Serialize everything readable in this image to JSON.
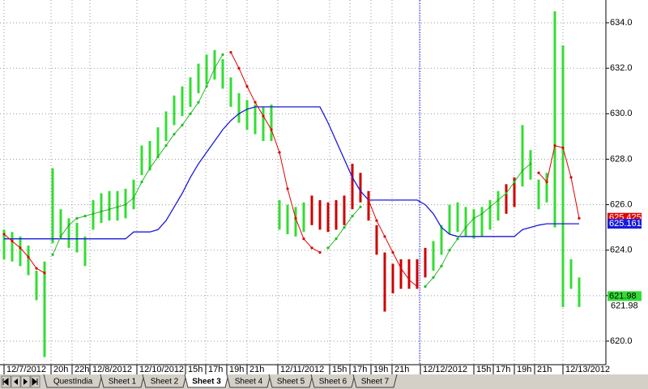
{
  "chart_data": {
    "type": "hilo",
    "x": [
      5,
      15,
      25,
      35,
      45,
      55,
      65,
      75,
      85,
      95,
      105,
      115,
      125,
      135,
      145,
      155,
      165,
      175,
      185,
      195,
      205,
      215,
      225,
      235,
      245,
      255,
      265,
      275,
      285,
      295,
      305,
      315,
      325,
      335,
      345,
      355,
      365,
      375,
      385,
      395,
      405,
      415,
      425,
      435,
      445,
      455,
      465,
      475,
      485,
      495,
      505,
      515,
      525,
      535,
      545,
      555,
      565,
      575,
      585,
      595,
      605,
      615,
      625,
      635,
      645,
      655,
      665,
      675,
      685,
      695,
      705,
      715
    ],
    "high": [
      624.9,
      624.8,
      624.6,
      624.2,
      623.1,
      623.5,
      627.6,
      625.8,
      625.4,
      625.2,
      624.6,
      626.2,
      626.5,
      626.6,
      626.6,
      626.7,
      627.1,
      628.6,
      628.8,
      629.4,
      630.1,
      630.8,
      631.2,
      631.6,
      632.2,
      632.6,
      632.8,
      632.4,
      631.6,
      630.9,
      630.6,
      630.4,
      630.3,
      630.4,
      626.2,
      626.0,
      625.9,
      626.1,
      626.4,
      626.2,
      626.1,
      626.2,
      626.4,
      627.8,
      627.4,
      626.6,
      625.1,
      623.9,
      623.4,
      623.6,
      623.6,
      623.6,
      624.1,
      624.4,
      625.1,
      626.0,
      626.1,
      625.9,
      625.8,
      625.9,
      626.2,
      626.6,
      626.9,
      627.2,
      629.5,
      628.4,
      627.1,
      627.4,
      634.5,
      633.0,
      623.6,
      622.8
    ],
    "low": [
      623.6,
      623.5,
      623.3,
      622.9,
      621.8,
      619.3,
      624.3,
      624.5,
      624.1,
      623.9,
      623.3,
      624.9,
      625.2,
      625.3,
      625.3,
      625.4,
      625.8,
      627.3,
      627.5,
      628.1,
      628.8,
      629.5,
      629.9,
      630.3,
      630.9,
      631.3,
      631.5,
      631.1,
      630.3,
      629.6,
      629.3,
      629.1,
      628.8,
      628.8,
      624.9,
      624.7,
      624.6,
      624.8,
      625.1,
      624.9,
      624.8,
      624.9,
      625.1,
      625.8,
      626.1,
      625.3,
      623.8,
      621.3,
      622.1,
      622.3,
      622.3,
      622.3,
      622.8,
      623.1,
      623.8,
      624.7,
      624.8,
      624.6,
      624.5,
      624.6,
      624.9,
      625.3,
      625.6,
      625.9,
      626.8,
      627.1,
      625.8,
      626.1,
      625.0,
      621.5,
      622.3,
      621.5
    ],
    "colors": [
      "#33dd33",
      "#33dd33",
      "#33dd33",
      "#33dd33",
      "#33dd33",
      "#33dd33",
      "#33dd33",
      "#33dd33",
      "#33dd33",
      "#33dd33",
      "#33dd33",
      "#33dd33",
      "#33dd33",
      "#33dd33",
      "#33dd33",
      "#33dd33",
      "#33dd33",
      "#33dd33",
      "#33dd33",
      "#33dd33",
      "#33dd33",
      "#33dd33",
      "#33dd33",
      "#33dd33",
      "#33dd33",
      "#33dd33",
      "#33dd33",
      "#33dd33",
      "#33dd33",
      "#33dd33",
      "#33dd33",
      "#33dd33",
      "#33dd33",
      "#33dd33",
      "#33dd33",
      "#33dd33",
      "#33dd33",
      "#33dd33",
      "#cc0000",
      "#cc0000",
      "#cc0000",
      "#cc0000",
      "#cc0000",
      "#cc0000",
      "#cc0000",
      "#cc0000",
      "#cc0000",
      "#cc0000",
      "#cc0000",
      "#cc0000",
      "#cc0000",
      "#cc0000",
      "#cc0000",
      "#33dd33",
      "#33dd33",
      "#33dd33",
      "#33dd33",
      "#33dd33",
      "#33dd33",
      "#33dd33",
      "#33dd33",
      "#33dd33",
      "#cc0000",
      "#cc0000",
      "#33dd33",
      "#33dd33",
      "#33dd33",
      "#33dd33",
      "#33dd33",
      "#33dd33",
      "#33dd33",
      "#33dd33"
    ],
    "lines": [
      {
        "color": "#1a1adc",
        "dots": false,
        "values": [
          624.5,
          624.5,
          624.5,
          624.5,
          624.5,
          624.5,
          624.5,
          624.5,
          624.5,
          624.5,
          624.5,
          624.5,
          624.5,
          624.5,
          624.5,
          624.5,
          624.8,
          624.8,
          624.8,
          624.9,
          625.3,
          625.9,
          626.5,
          627.2,
          627.8,
          628.3,
          628.8,
          629.3,
          629.7,
          630.0,
          630.2,
          630.3,
          630.3,
          630.3,
          630.3,
          630.3,
          630.3,
          630.3,
          630.3,
          630.3,
          629.6,
          628.8,
          628.0,
          627.2,
          626.6,
          626.2,
          626.2,
          626.2,
          626.2,
          626.2,
          626.2,
          626.2,
          626.0,
          625.6,
          625.0,
          624.7,
          624.6,
          624.6,
          624.6,
          624.6,
          624.6,
          624.6,
          624.6,
          624.6,
          624.9,
          625.0,
          625.1,
          625.16,
          625.16,
          625.16,
          625.16,
          625.16
        ]
      },
      {
        "color": "#e00000",
        "dots": true,
        "values": [
          624.7,
          624.4,
          624.1,
          623.7,
          623.2,
          623.0,
          null,
          null,
          null,
          null,
          null,
          null,
          null,
          null,
          null,
          null,
          null,
          null,
          null,
          null,
          null,
          null,
          null,
          null,
          null,
          null,
          null,
          null,
          632.7,
          632.0,
          631.2,
          630.5,
          629.9,
          629.3,
          628.3,
          626.7,
          625.4,
          624.5,
          624.1,
          623.9,
          null,
          null,
          null,
          null,
          null,
          626.2,
          625.3,
          624.6,
          623.9,
          623.2,
          622.7,
          622.4,
          null,
          null,
          null,
          null,
          null,
          null,
          null,
          null,
          null,
          null,
          null,
          null,
          null,
          null,
          627.4,
          627.0,
          628.6,
          628.5,
          627.2,
          625.4
        ]
      },
      {
        "color": "#22bb22",
        "dots": true,
        "values": [
          null,
          null,
          null,
          null,
          null,
          null,
          623.8,
          624.6,
          625.1,
          625.4,
          625.5,
          625.6,
          625.7,
          625.8,
          625.9,
          626.0,
          626.3,
          627.0,
          627.6,
          628.1,
          628.6,
          629.1,
          629.5,
          630.0,
          630.5,
          631.2,
          632.0,
          632.6,
          null,
          null,
          null,
          null,
          null,
          null,
          null,
          null,
          null,
          null,
          null,
          null,
          624.1,
          624.5,
          625.0,
          625.5,
          625.9,
          null,
          null,
          null,
          null,
          null,
          null,
          null,
          622.4,
          622.8,
          623.3,
          624.0,
          624.5,
          625.0,
          625.4,
          625.6,
          625.9,
          626.2,
          626.5,
          627.0,
          627.5,
          627.8,
          null,
          null,
          null,
          null,
          null,
          null
        ]
      }
    ],
    "xlim": [
      0,
      748
    ],
    "xticks": [
      {
        "value": 5,
        "label": "12/7/2012"
      },
      {
        "value": 63,
        "label": "20h"
      },
      {
        "value": 89,
        "label": "22h"
      },
      {
        "value": 111,
        "label": "12/8/2012"
      },
      {
        "value": 169,
        "label": "12/10/2012"
      },
      {
        "value": 229,
        "label": "15h"
      },
      {
        "value": 254,
        "label": "17h"
      },
      {
        "value": 280,
        "label": "19h"
      },
      {
        "value": 305,
        "label": "21h"
      },
      {
        "value": 343,
        "label": "12/11/2012"
      },
      {
        "value": 407,
        "label": "15h"
      },
      {
        "value": 432,
        "label": "17h"
      },
      {
        "value": 458,
        "label": "19h"
      },
      {
        "value": 484,
        "label": "21h"
      },
      {
        "value": 519,
        "label": "12/12/2012"
      },
      {
        "value": 585,
        "label": "15h"
      },
      {
        "value": 609,
        "label": "17h"
      },
      {
        "value": 635,
        "label": "19h"
      },
      {
        "value": 660,
        "label": "21h"
      },
      {
        "value": 695,
        "label": "12/13/2012"
      }
    ],
    "ylim": [
      619,
      635
    ],
    "yticks": [
      {
        "value": 620,
        "label": "620.0"
      },
      {
        "value": 622,
        "label": "622.0"
      },
      {
        "value": 624,
        "label": "624.0"
      },
      {
        "value": 626,
        "label": "626.0"
      },
      {
        "value": 628,
        "label": "628.0"
      },
      {
        "value": 630,
        "label": "630.0"
      },
      {
        "value": 632,
        "label": "632.0"
      },
      {
        "value": 634,
        "label": "634.0"
      }
    ],
    "grid": true,
    "cursor_x": 518,
    "price_labels": [
      {
        "value": 625.425,
        "label": "625.425",
        "color": "#e00000"
      },
      {
        "value": 625.161,
        "label": "625.161",
        "color": "#1a1adc"
      },
      {
        "value": 621.98,
        "label": "621.98",
        "color": "#33dd33"
      },
      {
        "value": 621.98,
        "label": "621.98"
      }
    ]
  },
  "tabs": {
    "items": [
      "QuestIndia",
      "Sheet 1",
      "Sheet 2",
      "Sheet 3",
      "Sheet 4",
      "Sheet 5",
      "Sheet 6",
      "Sheet 7"
    ],
    "active": 3
  }
}
